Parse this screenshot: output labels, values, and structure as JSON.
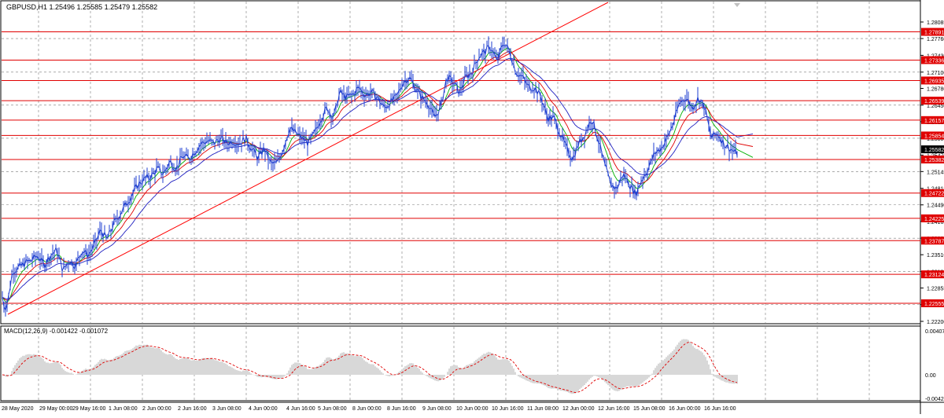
{
  "window": {
    "symbol_header": "GBPUSD,H1  1.25496 1.25585 1.25479 1.25582",
    "macd_header": "MACD(12,26,9) -0.001422 -0.001072"
  },
  "colors": {
    "background": "#ffffff",
    "grid": "#7a7a7a",
    "price_line": "#1f3fd0",
    "level_line": "#e00000",
    "trend_line": "#ff0000",
    "ma_fast": "#00b000",
    "ma_mid": "#e00000",
    "ma_slow": "#2020c0",
    "macd_hist": "#b0b0b0",
    "macd_signal": "#e00000",
    "level_label_bg": "#e00000",
    "current_label_bg": "#000000"
  },
  "chart_data": {
    "type": "line",
    "symbol": "GBPUSD",
    "timeframe": "H1",
    "ohlc_header": {
      "open": 1.25496,
      "high": 1.25585,
      "low": 1.25479,
      "close": 1.25582
    },
    "y_ticks": [
      "1.28085",
      "1.27760",
      "1.27430",
      "1.27100",
      "1.26780",
      "1.26450",
      "1.26125",
      "1.25800",
      "1.25470",
      "1.25145",
      "1.24815",
      "1.24490",
      "1.24165",
      "1.23835",
      "1.23510",
      "1.23180",
      "1.22855",
      "1.22530",
      "1.22200"
    ],
    "y_range": [
      1.222,
      1.284
    ],
    "x_ticks": [
      "28 May 2020",
      "29 May 00:00",
      "29 May 16:00",
      "1 Jun 08:00",
      "2 Jun 00:00",
      "2 Jun 16:00",
      "3 Jun 08:00",
      "4 Jun 00:00",
      "4 Jun 16:00",
      "5 Jun 08:00",
      "8 Jun 00:00",
      "8 Jun 16:00",
      "9 Jun 08:00",
      "10 Jun 00:00",
      "10 Jun 16:00",
      "11 Jun 08:00",
      "12 Jun 00:00",
      "12 Jun 16:00",
      "15 Jun 08:00",
      "16 Jun 00:00",
      "16 Jun 16:00"
    ],
    "levels": [
      "1.27891",
      "1.27336",
      "1.26935",
      "1.26539",
      "1.26157",
      "1.25854",
      "1.25382",
      "1.24722",
      "1.24225",
      "1.23787",
      "1.23124",
      "1.22555"
    ],
    "current_price": "1.25582",
    "price_anchors": [
      [
        0,
        1.229
      ],
      [
        6,
        1.2245
      ],
      [
        10,
        1.226
      ],
      [
        16,
        1.232
      ],
      [
        24,
        1.2325
      ],
      [
        32,
        1.2335
      ],
      [
        40,
        1.234
      ],
      [
        48,
        1.235
      ],
      [
        56,
        1.233
      ],
      [
        64,
        1.235
      ],
      [
        72,
        1.236
      ],
      [
        80,
        1.232
      ],
      [
        88,
        1.234
      ],
      [
        96,
        1.233
      ],
      [
        104,
        1.236
      ],
      [
        112,
        1.235
      ],
      [
        120,
        1.237
      ],
      [
        128,
        1.24
      ],
      [
        136,
        1.238
      ],
      [
        144,
        1.241
      ],
      [
        152,
        1.243
      ],
      [
        160,
        1.245
      ],
      [
        168,
        1.247
      ],
      [
        176,
        1.249
      ],
      [
        184,
        1.25
      ],
      [
        192,
        1.2505
      ],
      [
        200,
        1.252
      ],
      [
        208,
        1.251
      ],
      [
        216,
        1.2535
      ],
      [
        224,
        1.252
      ],
      [
        232,
        1.2545
      ],
      [
        240,
        1.254
      ],
      [
        248,
        1.2555
      ],
      [
        256,
        1.257
      ],
      [
        264,
        1.2575
      ],
      [
        272,
        1.257
      ],
      [
        280,
        1.258
      ],
      [
        288,
        1.257
      ],
      [
        296,
        1.2575
      ],
      [
        304,
        1.257
      ],
      [
        312,
        1.258
      ],
      [
        320,
        1.256
      ],
      [
        328,
        1.254
      ],
      [
        336,
        1.256
      ],
      [
        344,
        1.253
      ],
      [
        352,
        1.253
      ],
      [
        360,
        1.256
      ],
      [
        368,
        1.26
      ],
      [
        376,
        1.259
      ],
      [
        384,
        1.258
      ],
      [
        392,
        1.257
      ],
      [
        400,
        1.259
      ],
      [
        408,
        1.262
      ],
      [
        416,
        1.264
      ],
      [
        424,
        1.262
      ],
      [
        432,
        1.267
      ],
      [
        440,
        1.266
      ],
      [
        448,
        1.2665
      ],
      [
        456,
        1.268
      ],
      [
        464,
        1.2665
      ],
      [
        472,
        1.267
      ],
      [
        480,
        1.266
      ],
      [
        488,
        1.264
      ],
      [
        496,
        1.265
      ],
      [
        504,
        1.266
      ],
      [
        512,
        1.269
      ],
      [
        520,
        1.27
      ],
      [
        528,
        1.268
      ],
      [
        536,
        1.266
      ],
      [
        544,
        1.265
      ],
      [
        552,
        1.262
      ],
      [
        560,
        1.264
      ],
      [
        568,
        1.27
      ],
      [
        576,
        1.269
      ],
      [
        584,
        1.267
      ],
      [
        592,
        1.27
      ],
      [
        600,
        1.271
      ],
      [
        608,
        1.274
      ],
      [
        616,
        1.275
      ],
      [
        624,
        1.276
      ],
      [
        632,
        1.273
      ],
      [
        640,
        1.277
      ],
      [
        648,
        1.275
      ],
      [
        656,
        1.271
      ],
      [
        664,
        1.27
      ],
      [
        672,
        1.268
      ],
      [
        680,
        1.268
      ],
      [
        688,
        1.266
      ],
      [
        696,
        1.262
      ],
      [
        704,
        1.262
      ],
      [
        712,
        1.259
      ],
      [
        720,
        1.256
      ],
      [
        728,
        1.254
      ],
      [
        736,
        1.257
      ],
      [
        744,
        1.259
      ],
      [
        752,
        1.262
      ],
      [
        760,
        1.258
      ],
      [
        768,
        1.253
      ],
      [
        776,
        1.249
      ],
      [
        784,
        1.248
      ],
      [
        792,
        1.251
      ],
      [
        800,
        1.249
      ],
      [
        808,
        1.247
      ],
      [
        816,
        1.25
      ],
      [
        824,
        1.252
      ],
      [
        832,
        1.255
      ],
      [
        840,
        1.256
      ],
      [
        848,
        1.258
      ],
      [
        856,
        1.261
      ],
      [
        864,
        1.265
      ],
      [
        872,
        1.266
      ],
      [
        880,
        1.264
      ],
      [
        888,
        1.266
      ],
      [
        896,
        1.264
      ],
      [
        904,
        1.258
      ],
      [
        912,
        1.259
      ],
      [
        920,
        1.257
      ],
      [
        928,
        1.256
      ],
      [
        936,
        1.255
      ]
    ],
    "macd": {
      "y_ticks": [
        "0.00407",
        "0.00",
        "-0.00424"
      ],
      "y_range": [
        -0.00424,
        0.00407
      ]
    }
  }
}
